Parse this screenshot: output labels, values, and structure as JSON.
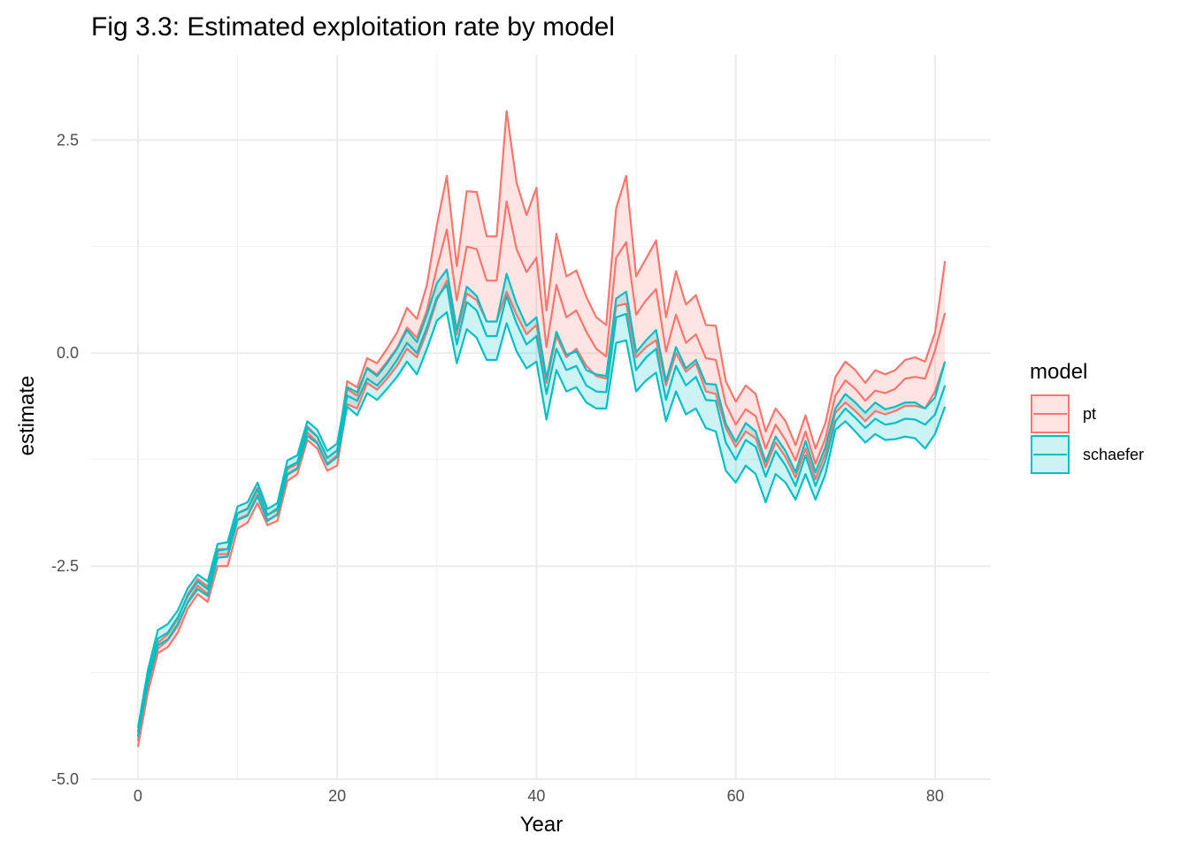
{
  "chart_data": {
    "type": "area",
    "title": "Fig 3.3: Estimated exploitation rate by model",
    "xlabel": "Year",
    "ylabel": "estimate",
    "xlim": [
      -4.7,
      85.6
    ],
    "ylim": [
      -5.0,
      3.5
    ],
    "x_ticks": [
      0,
      20,
      40,
      60,
      80
    ],
    "x_tick_labels": [
      "0",
      "20",
      "40",
      "60",
      "80"
    ],
    "y_ticks": [
      -5.0,
      -2.5,
      0.0,
      2.5
    ],
    "y_tick_labels": [
      "-5.0",
      "-2.5",
      "0.0",
      "2.5"
    ],
    "grid": true,
    "legend": {
      "title": "model",
      "placement": "right"
    },
    "x": [
      0,
      1,
      2,
      3,
      4,
      5,
      6,
      7,
      8,
      9,
      10,
      11,
      12,
      13,
      14,
      15,
      16,
      17,
      18,
      19,
      20,
      21,
      22,
      23,
      24,
      25,
      26,
      27,
      28,
      29,
      30,
      31,
      32,
      33,
      34,
      35,
      36,
      37,
      38,
      39,
      40,
      41,
      42,
      43,
      44,
      45,
      46,
      47,
      48,
      49,
      50,
      51,
      52,
      53,
      54,
      55,
      56,
      57,
      58,
      59,
      60,
      61,
      62,
      63,
      64,
      65,
      66,
      67,
      68,
      69,
      70,
      71,
      72,
      73,
      74,
      75,
      76,
      77,
      78,
      79,
      80,
      81
    ],
    "series": [
      {
        "name": "pt",
        "color": "#f8766d",
        "fill": "#f8766d",
        "upper": [
          -4.5,
          -3.85,
          -3.4,
          -3.3,
          -3.12,
          -2.83,
          -2.65,
          -2.74,
          -2.3,
          -2.3,
          -1.88,
          -1.82,
          -1.58,
          -1.9,
          -1.84,
          -1.36,
          -1.3,
          -0.86,
          -0.98,
          -1.23,
          -1.14,
          -0.33,
          -0.4,
          -0.06,
          -0.12,
          0.05,
          0.24,
          0.53,
          0.4,
          0.8,
          1.5,
          2.08,
          1.02,
          1.9,
          1.89,
          1.37,
          1.37,
          2.84,
          2.0,
          1.62,
          1.94,
          0.5,
          1.4,
          0.9,
          0.97,
          0.66,
          0.42,
          0.33,
          1.7,
          2.08,
          0.9,
          1.11,
          1.32,
          0.42,
          0.96,
          0.57,
          0.68,
          0.33,
          0.32,
          -0.33,
          -0.57,
          -0.38,
          -0.48,
          -0.92,
          -0.65,
          -0.8,
          -1.08,
          -0.73,
          -1.12,
          -0.82,
          -0.28,
          -0.1,
          -0.2,
          -0.35,
          -0.2,
          -0.25,
          -0.2,
          -0.08,
          -0.05,
          -0.1,
          0.24,
          1.08
        ],
        "mid": [
          -4.55,
          -3.92,
          -3.47,
          -3.37,
          -3.2,
          -2.92,
          -2.73,
          -2.83,
          -2.36,
          -2.36,
          -1.95,
          -1.9,
          -1.66,
          -1.96,
          -1.9,
          -1.43,
          -1.36,
          -0.93,
          -1.05,
          -1.3,
          -1.2,
          -0.42,
          -0.5,
          -0.17,
          -0.25,
          -0.1,
          0.06,
          0.3,
          0.18,
          0.5,
          1.0,
          1.45,
          0.62,
          1.25,
          1.22,
          0.85,
          0.85,
          1.78,
          1.22,
          0.95,
          1.12,
          0.07,
          0.8,
          0.42,
          0.5,
          0.25,
          0.05,
          -0.04,
          1.12,
          1.3,
          0.45,
          0.62,
          0.75,
          0.02,
          0.45,
          0.12,
          0.22,
          -0.06,
          -0.08,
          -0.6,
          -0.84,
          -0.66,
          -0.74,
          -1.12,
          -0.84,
          -1.02,
          -1.26,
          -0.92,
          -1.3,
          -1.0,
          -0.5,
          -0.32,
          -0.42,
          -0.56,
          -0.44,
          -0.47,
          -0.42,
          -0.3,
          -0.28,
          -0.3,
          0.03,
          0.47
        ],
        "lower": [
          -4.62,
          -3.98,
          -3.52,
          -3.45,
          -3.28,
          -3.0,
          -2.83,
          -2.92,
          -2.5,
          -2.5,
          -2.06,
          -1.99,
          -1.76,
          -2.02,
          -1.97,
          -1.5,
          -1.42,
          -1.02,
          -1.12,
          -1.38,
          -1.32,
          -0.6,
          -0.65,
          -0.35,
          -0.43,
          -0.3,
          -0.15,
          0.05,
          -0.05,
          0.25,
          0.62,
          0.85,
          0.22,
          0.7,
          0.62,
          0.37,
          0.37,
          0.72,
          0.45,
          0.22,
          0.33,
          -0.35,
          0.2,
          -0.05,
          0.05,
          -0.15,
          -0.27,
          -0.3,
          0.55,
          0.58,
          -0.05,
          0.07,
          0.15,
          -0.38,
          0.0,
          -0.22,
          -0.12,
          -0.45,
          -0.48,
          -0.88,
          -1.1,
          -0.92,
          -1.0,
          -1.34,
          -1.05,
          -1.22,
          -1.46,
          -1.12,
          -1.48,
          -1.18,
          -0.7,
          -0.58,
          -0.68,
          -0.8,
          -0.68,
          -0.72,
          -0.68,
          -0.62,
          -0.62,
          -0.65,
          -0.45,
          -0.1
        ]
      },
      {
        "name": "schaefer",
        "color": "#00bfc4",
        "fill": "#00bfc4",
        "upper": [
          -4.4,
          -3.72,
          -3.25,
          -3.18,
          -3.02,
          -2.76,
          -2.6,
          -2.68,
          -2.24,
          -2.22,
          -1.8,
          -1.75,
          -1.52,
          -1.83,
          -1.76,
          -1.26,
          -1.2,
          -0.8,
          -0.9,
          -1.15,
          -1.06,
          -0.4,
          -0.46,
          -0.18,
          -0.27,
          -0.12,
          0.05,
          0.27,
          0.13,
          0.45,
          0.82,
          0.98,
          0.27,
          0.78,
          0.67,
          0.37,
          0.37,
          0.93,
          0.58,
          0.32,
          0.42,
          -0.3,
          0.25,
          -0.02,
          0.02,
          -0.2,
          -0.25,
          -0.27,
          0.64,
          0.72,
          0.01,
          0.15,
          0.27,
          -0.33,
          0.07,
          -0.18,
          -0.08,
          -0.36,
          -0.37,
          -0.83,
          -1.04,
          -0.82,
          -0.92,
          -1.28,
          -0.98,
          -1.15,
          -1.4,
          -1.03,
          -1.4,
          -1.1,
          -0.65,
          -0.48,
          -0.58,
          -0.7,
          -0.58,
          -0.66,
          -0.63,
          -0.58,
          -0.58,
          -0.65,
          -0.52,
          -0.1
        ],
        "mid": [
          -4.45,
          -3.8,
          -3.35,
          -3.28,
          -3.1,
          -2.85,
          -2.68,
          -2.77,
          -2.32,
          -2.3,
          -1.88,
          -1.83,
          -1.6,
          -1.9,
          -1.82,
          -1.34,
          -1.28,
          -0.88,
          -0.98,
          -1.23,
          -1.14,
          -0.5,
          -0.56,
          -0.3,
          -0.38,
          -0.25,
          -0.08,
          0.12,
          0.0,
          0.3,
          0.65,
          0.8,
          0.1,
          0.6,
          0.5,
          0.2,
          0.2,
          0.67,
          0.35,
          0.1,
          0.2,
          -0.48,
          0.05,
          -0.2,
          -0.15,
          -0.38,
          -0.45,
          -0.46,
          0.42,
          0.46,
          -0.2,
          -0.05,
          0.05,
          -0.55,
          -0.15,
          -0.38,
          -0.28,
          -0.55,
          -0.56,
          -1.05,
          -1.25,
          -1.02,
          -1.1,
          -1.45,
          -1.15,
          -1.32,
          -1.56,
          -1.2,
          -1.56,
          -1.26,
          -0.8,
          -0.65,
          -0.76,
          -0.88,
          -0.77,
          -0.84,
          -0.82,
          -0.77,
          -0.78,
          -0.84,
          -0.72,
          -0.38
        ],
        "lower": [
          -4.5,
          -3.87,
          -3.43,
          -3.36,
          -3.18,
          -2.93,
          -2.77,
          -2.85,
          -2.4,
          -2.39,
          -1.96,
          -1.91,
          -1.68,
          -1.97,
          -1.89,
          -1.42,
          -1.35,
          -0.97,
          -1.06,
          -1.31,
          -1.22,
          -0.63,
          -0.73,
          -0.47,
          -0.55,
          -0.42,
          -0.28,
          -0.1,
          -0.25,
          0.05,
          0.38,
          0.48,
          -0.12,
          0.28,
          0.18,
          -0.08,
          -0.08,
          0.35,
          0.02,
          -0.18,
          -0.1,
          -0.78,
          -0.2,
          -0.45,
          -0.4,
          -0.58,
          -0.65,
          -0.65,
          0.12,
          0.15,
          -0.45,
          -0.32,
          -0.23,
          -0.8,
          -0.45,
          -0.72,
          -0.65,
          -0.88,
          -0.92,
          -1.38,
          -1.52,
          -1.32,
          -1.42,
          -1.75,
          -1.42,
          -1.52,
          -1.72,
          -1.42,
          -1.72,
          -1.42,
          -0.9,
          -0.8,
          -0.92,
          -1.05,
          -0.95,
          -1.02,
          -1.01,
          -0.98,
          -1.0,
          -1.12,
          -0.95,
          -0.63
        ]
      }
    ]
  }
}
